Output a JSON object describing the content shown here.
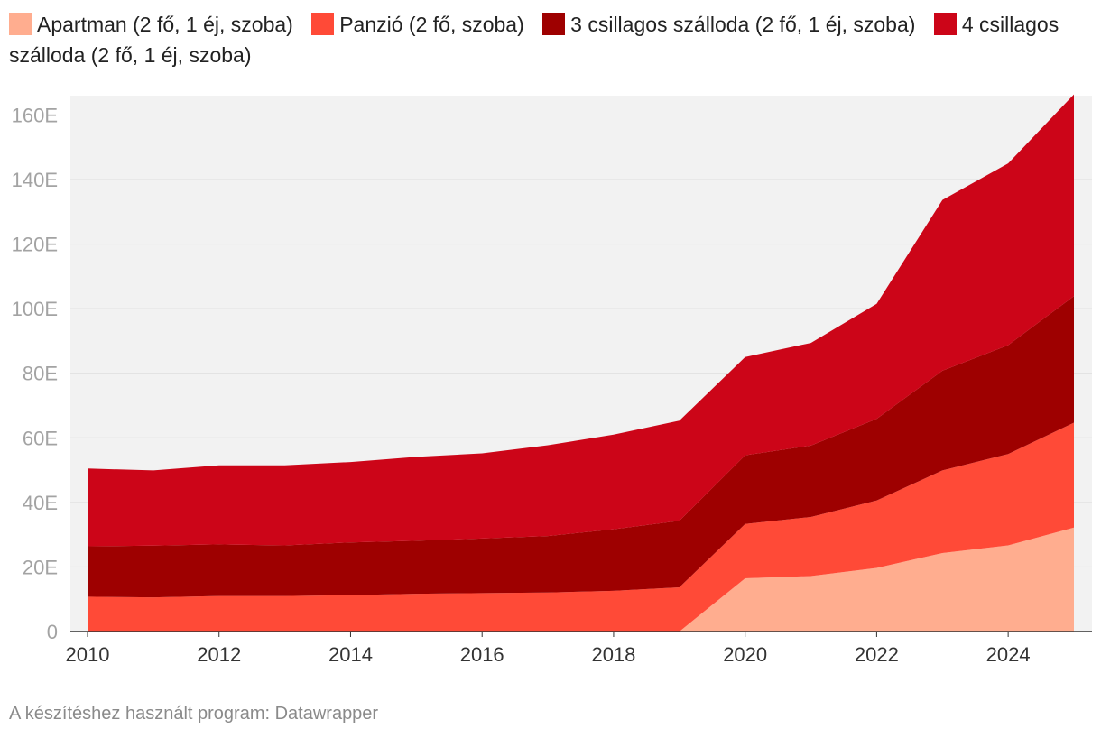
{
  "chart_data": {
    "type": "area",
    "stacked": true,
    "x": [
      2010,
      2011,
      2012,
      2013,
      2014,
      2015,
      2016,
      2017,
      2018,
      2019,
      2020,
      2021,
      2022,
      2023,
      2024,
      2025
    ],
    "series": [
      {
        "name": "Apartman (2 fő, 1 éj, szoba)",
        "color": "#ffad8f",
        "values": [
          0,
          0,
          0,
          0,
          0,
          0,
          0,
          0,
          0,
          0,
          16.5,
          17.2,
          19.7,
          24.3,
          26.7,
          32.2
        ]
      },
      {
        "name": "Panzió (2 fő, szoba)",
        "color": "#ff4a37",
        "values": [
          10.8,
          10.6,
          11.0,
          11.0,
          11.3,
          11.7,
          11.9,
          12.1,
          12.6,
          13.7,
          16.8,
          18.3,
          20.9,
          25.6,
          28.3,
          32.5
        ]
      },
      {
        "name": "3 csillagos szálloda (2 fő, 1 éj, szoba)",
        "color": "#9e0000",
        "values": [
          15.6,
          16.0,
          16.0,
          15.7,
          16.3,
          16.4,
          16.9,
          17.5,
          19.1,
          20.6,
          21.3,
          22.1,
          25.3,
          30.9,
          33.7,
          39.2
        ]
      },
      {
        "name": "4 csillagos szálloda (2 fő, 1 éj, szoba)",
        "color": "#cc0518",
        "values": [
          24.1,
          23.3,
          24.5,
          24.8,
          24.9,
          26.0,
          26.4,
          28.1,
          29.3,
          31.0,
          30.4,
          31.8,
          35.6,
          52.9,
          56.3,
          62.5
        ]
      }
    ],
    "xticks": [
      2010,
      2012,
      2014,
      2016,
      2018,
      2020,
      2022,
      2024
    ],
    "yticks": [
      0,
      20,
      40,
      60,
      80,
      100,
      120,
      140,
      160
    ],
    "ytick_labels": [
      "0",
      "20E",
      "40E",
      "60E",
      "80E",
      "100E",
      "120E",
      "140E",
      "160E"
    ],
    "xlim": [
      2010,
      2025
    ],
    "ylim": [
      0,
      166
    ],
    "grid": true,
    "legend_position": "top"
  },
  "footer": "A készítéshez használt program: Datawrapper"
}
